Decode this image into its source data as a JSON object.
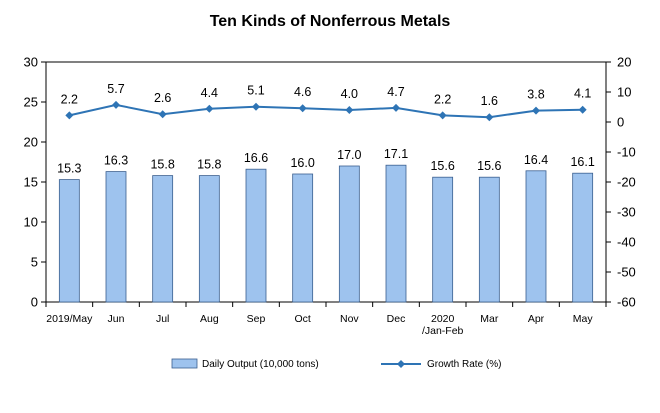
{
  "chart_data": {
    "type": "bar-line-combo",
    "title": "Ten Kinds of Nonferrous Metals",
    "categories": [
      [
        "2019/May"
      ],
      [
        "Jun"
      ],
      [
        "Jul"
      ],
      [
        "Aug"
      ],
      [
        "Sep"
      ],
      [
        "Oct"
      ],
      [
        "Nov"
      ],
      [
        "Dec"
      ],
      [
        "2020",
        "/Jan-Feb"
      ],
      [
        "Mar"
      ],
      [
        "Apr"
      ],
      [
        "May"
      ]
    ],
    "series": [
      {
        "name": "Daily Output (10,000 tons)",
        "type": "bar",
        "axis": "left",
        "color": "#9ec3ee",
        "values": [
          15.3,
          16.3,
          15.8,
          15.8,
          16.6,
          16.0,
          17.0,
          17.1,
          15.6,
          15.6,
          16.4,
          16.1
        ],
        "labels": [
          "15.3",
          "16.3",
          "15.8",
          "15.8",
          "16.6",
          "16.0",
          "17.0",
          "17.1",
          "15.6",
          "15.6",
          "16.4",
          "16.1"
        ]
      },
      {
        "name": "Growth Rate (%)",
        "type": "line",
        "axis": "right",
        "color": "#2e74b5",
        "values": [
          2.2,
          5.7,
          2.6,
          4.4,
          5.1,
          4.6,
          4.0,
          4.7,
          2.2,
          1.6,
          3.8,
          4.1
        ],
        "labels": [
          "2.2",
          "5.7",
          "2.6",
          "4.4",
          "5.1",
          "4.6",
          "4.0",
          "4.7",
          "2.2",
          "1.6",
          "3.8",
          "4.1"
        ]
      }
    ],
    "y_left": {
      "min": 0,
      "max": 30,
      "ticks": [
        "0",
        "5",
        "10",
        "15",
        "20",
        "25",
        "30"
      ]
    },
    "y_right": {
      "min": -60,
      "max": 20,
      "ticks": [
        "-60",
        "-50",
        "-40",
        "-30",
        "-20",
        "-10",
        "0",
        "10",
        "20"
      ]
    },
    "grid": false,
    "legend_position": "bottom"
  }
}
